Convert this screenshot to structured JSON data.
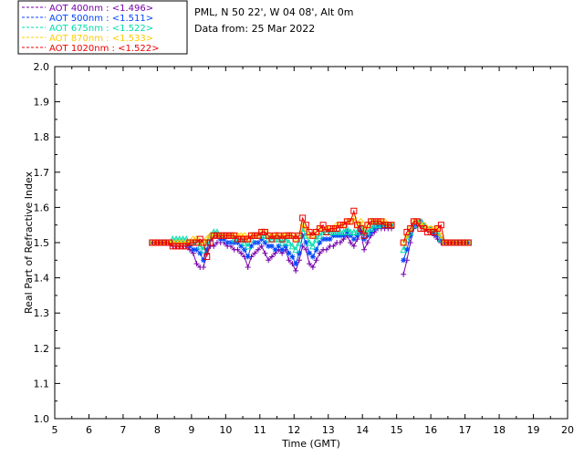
{
  "header": {
    "site": "PML, N 50 22', W 04 08', Alt 0m",
    "date": "Data from: 25 Mar 2022"
  },
  "chart_data": {
    "type": "line",
    "xlabel": "Time (GMT)",
    "ylabel": "Real Part of Refractive Index",
    "xlim": [
      5,
      20
    ],
    "ylim": [
      1.0,
      2.0
    ],
    "xticks": [
      5,
      6,
      7,
      8,
      9,
      10,
      11,
      12,
      13,
      14,
      15,
      16,
      17,
      18,
      19,
      20
    ],
    "yticks": [
      "1.0",
      "1.1",
      "1.2",
      "1.3",
      "1.4",
      "1.5",
      "1.6",
      "1.7",
      "1.8",
      "1.9",
      "2.0"
    ],
    "grid": false,
    "legend_position": "top-left",
    "x": [
      7.85,
      7.95,
      8.05,
      8.15,
      8.25,
      8.35,
      8.45,
      8.55,
      8.65,
      8.75,
      8.85,
      8.95,
      9.05,
      9.15,
      9.25,
      9.35,
      9.45,
      9.55,
      9.65,
      9.75,
      9.85,
      9.95,
      10.05,
      10.15,
      10.25,
      10.35,
      10.45,
      10.55,
      10.65,
      10.75,
      10.85,
      10.95,
      11.05,
      11.15,
      11.25,
      11.35,
      11.45,
      11.55,
      11.65,
      11.75,
      11.85,
      11.95,
      12.05,
      12.15,
      12.25,
      12.35,
      12.45,
      12.55,
      12.65,
      12.75,
      12.85,
      12.95,
      13.05,
      13.15,
      13.25,
      13.35,
      13.45,
      13.55,
      13.65,
      13.75,
      13.85,
      13.95,
      14.05,
      14.15,
      14.25,
      14.35,
      14.45,
      14.55,
      14.65,
      14.75,
      14.85,
      15.2,
      15.3,
      15.4,
      15.5,
      15.6,
      15.7,
      15.8,
      15.9,
      16.0,
      16.1,
      16.2,
      16.3,
      16.4,
      16.5,
      16.6,
      16.7,
      16.8,
      16.9,
      17.0,
      17.1
    ],
    "series": [
      {
        "name": "AOT  400nm : <1.496>",
        "color": "#7700aa",
        "marker": "plus",
        "values": [
          1.5,
          1.5,
          1.5,
          1.5,
          1.5,
          1.5,
          1.49,
          1.49,
          1.49,
          1.49,
          1.49,
          1.48,
          1.47,
          1.44,
          1.43,
          1.43,
          1.47,
          1.49,
          1.49,
          1.5,
          1.5,
          1.5,
          1.49,
          1.49,
          1.48,
          1.48,
          1.47,
          1.46,
          1.43,
          1.46,
          1.47,
          1.48,
          1.49,
          1.47,
          1.45,
          1.46,
          1.47,
          1.48,
          1.47,
          1.48,
          1.45,
          1.44,
          1.42,
          1.45,
          1.49,
          1.48,
          1.44,
          1.43,
          1.45,
          1.47,
          1.48,
          1.48,
          1.49,
          1.49,
          1.5,
          1.5,
          1.51,
          1.52,
          1.5,
          1.49,
          1.51,
          1.53,
          1.48,
          1.5,
          1.52,
          1.53,
          1.54,
          1.54,
          1.54,
          1.54,
          1.54,
          1.41,
          1.45,
          1.5,
          1.54,
          1.55,
          1.55,
          1.55,
          1.54,
          1.53,
          1.52,
          1.51,
          1.5,
          1.5,
          1.5,
          1.5,
          1.5,
          1.5,
          1.5,
          1.5,
          1.5
        ]
      },
      {
        "name": "AOT  500nm : <1.511>",
        "color": "#0044ff",
        "marker": "star",
        "values": [
          1.5,
          1.5,
          1.5,
          1.5,
          1.5,
          1.5,
          1.5,
          1.5,
          1.5,
          1.5,
          1.5,
          1.49,
          1.48,
          1.48,
          1.47,
          1.45,
          1.48,
          1.51,
          1.52,
          1.52,
          1.51,
          1.51,
          1.5,
          1.5,
          1.5,
          1.5,
          1.49,
          1.48,
          1.46,
          1.49,
          1.5,
          1.5,
          1.51,
          1.5,
          1.49,
          1.49,
          1.48,
          1.49,
          1.48,
          1.49,
          1.47,
          1.46,
          1.44,
          1.47,
          1.52,
          1.5,
          1.47,
          1.46,
          1.48,
          1.5,
          1.51,
          1.51,
          1.51,
          1.52,
          1.52,
          1.52,
          1.52,
          1.53,
          1.52,
          1.51,
          1.52,
          1.54,
          1.51,
          1.52,
          1.53,
          1.54,
          1.55,
          1.55,
          1.55,
          1.55,
          1.55,
          1.45,
          1.48,
          1.52,
          1.55,
          1.56,
          1.56,
          1.55,
          1.54,
          1.54,
          1.53,
          1.52,
          1.51,
          1.5,
          1.5,
          1.5,
          1.5,
          1.5,
          1.5,
          1.5,
          1.5
        ]
      },
      {
        "name": "AOT  675nm : <1.522>",
        "color": "#00ddaa",
        "marker": "triangle",
        "values": [
          1.5,
          1.5,
          1.5,
          1.5,
          1.5,
          1.5,
          1.51,
          1.51,
          1.51,
          1.51,
          1.51,
          1.5,
          1.5,
          1.5,
          1.49,
          1.48,
          1.5,
          1.52,
          1.53,
          1.53,
          1.52,
          1.52,
          1.52,
          1.52,
          1.51,
          1.51,
          1.51,
          1.5,
          1.49,
          1.51,
          1.52,
          1.52,
          1.52,
          1.52,
          1.51,
          1.51,
          1.51,
          1.51,
          1.5,
          1.51,
          1.5,
          1.49,
          1.48,
          1.5,
          1.54,
          1.52,
          1.5,
          1.49,
          1.51,
          1.52,
          1.53,
          1.53,
          1.53,
          1.53,
          1.53,
          1.53,
          1.53,
          1.54,
          1.53,
          1.53,
          1.53,
          1.55,
          1.53,
          1.53,
          1.54,
          1.55,
          1.55,
          1.55,
          1.55,
          1.55,
          1.55,
          1.48,
          1.51,
          1.53,
          1.55,
          1.56,
          1.56,
          1.55,
          1.54,
          1.54,
          1.53,
          1.53,
          1.51,
          1.5,
          1.5,
          1.5,
          1.5,
          1.5,
          1.5,
          1.5,
          1.5
        ]
      },
      {
        "name": "AOT  870nm : <1.533>",
        "color": "#ffcc00",
        "marker": "diamond",
        "values": [
          1.5,
          1.5,
          1.5,
          1.5,
          1.5,
          1.5,
          1.5,
          1.5,
          1.5,
          1.5,
          1.5,
          1.5,
          1.51,
          1.51,
          1.5,
          1.5,
          1.51,
          1.52,
          1.52,
          1.52,
          1.52,
          1.52,
          1.52,
          1.52,
          1.52,
          1.52,
          1.52,
          1.52,
          1.51,
          1.52,
          1.52,
          1.52,
          1.53,
          1.53,
          1.52,
          1.52,
          1.52,
          1.52,
          1.52,
          1.52,
          1.52,
          1.52,
          1.51,
          1.52,
          1.55,
          1.54,
          1.52,
          1.52,
          1.53,
          1.54,
          1.54,
          1.54,
          1.54,
          1.54,
          1.55,
          1.55,
          1.55,
          1.56,
          1.56,
          1.57,
          1.55,
          1.56,
          1.54,
          1.55,
          1.56,
          1.56,
          1.56,
          1.56,
          1.56,
          1.55,
          1.55,
          1.5,
          1.52,
          1.54,
          1.56,
          1.56,
          1.55,
          1.55,
          1.54,
          1.54,
          1.54,
          1.54,
          1.52,
          1.5,
          1.5,
          1.5,
          1.5,
          1.5,
          1.5,
          1.5,
          1.5
        ]
      },
      {
        "name": "AOT 1020nm : <1.522>",
        "color": "#ee0000",
        "marker": "square",
        "values": [
          1.5,
          1.5,
          1.5,
          1.5,
          1.5,
          1.5,
          1.49,
          1.49,
          1.49,
          1.49,
          1.49,
          1.5,
          1.5,
          1.5,
          1.51,
          1.5,
          1.46,
          1.5,
          1.52,
          1.52,
          1.52,
          1.52,
          1.52,
          1.52,
          1.52,
          1.51,
          1.51,
          1.51,
          1.51,
          1.52,
          1.52,
          1.52,
          1.53,
          1.53,
          1.52,
          1.51,
          1.52,
          1.52,
          1.51,
          1.52,
          1.52,
          1.52,
          1.51,
          1.52,
          1.57,
          1.55,
          1.53,
          1.52,
          1.53,
          1.54,
          1.55,
          1.53,
          1.54,
          1.54,
          1.54,
          1.55,
          1.55,
          1.56,
          1.56,
          1.59,
          1.55,
          1.54,
          1.52,
          1.55,
          1.56,
          1.56,
          1.56,
          1.56,
          1.55,
          1.55,
          1.55,
          1.5,
          1.53,
          1.54,
          1.56,
          1.56,
          1.54,
          1.54,
          1.53,
          1.53,
          1.53,
          1.54,
          1.55,
          1.5,
          1.5,
          1.5,
          1.5,
          1.5,
          1.5,
          1.5,
          1.5
        ]
      }
    ]
  }
}
